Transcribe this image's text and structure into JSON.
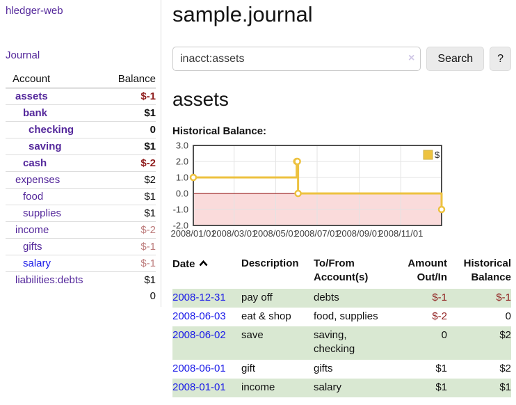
{
  "colors": {
    "link_purple": "#54289B",
    "link_blue": "#1a1ae8",
    "negative_strong": "#8f1d1d",
    "negative_faded": "#bd7c7c",
    "row_stripe_green": "#d9e8d2",
    "chart_gold": "#EDC240",
    "chart_negative_region": "#fadbdb",
    "chart_zero_line": "#8b0000"
  },
  "sidebar": {
    "brand": "hledger-web",
    "journal_link": "Journal",
    "accounts": {
      "header_account": "Account",
      "header_balance": "Balance",
      "rows": [
        {
          "name": "assets",
          "depth": 1,
          "bold": true,
          "balance": "$-1",
          "neg": "strong",
          "link": "purple"
        },
        {
          "name": "bank",
          "depth": 2,
          "bold": true,
          "balance": "$1",
          "neg": "none",
          "link": "purple"
        },
        {
          "name": "checking",
          "depth": 3,
          "bold": true,
          "balance": "0",
          "neg": "none",
          "link": "purple"
        },
        {
          "name": "saving",
          "depth": 3,
          "bold": true,
          "balance": "$1",
          "neg": "none",
          "link": "purple"
        },
        {
          "name": "cash",
          "depth": 2,
          "bold": true,
          "balance": "$-2",
          "neg": "strong",
          "link": "purple"
        },
        {
          "name": "expenses",
          "depth": 1,
          "bold": false,
          "balance": "$2",
          "neg": "none",
          "link": "purple"
        },
        {
          "name": "food",
          "depth": 2,
          "bold": false,
          "balance": "$1",
          "neg": "none",
          "link": "purple"
        },
        {
          "name": "supplies",
          "depth": 2,
          "bold": false,
          "balance": "$1",
          "neg": "none",
          "link": "purple"
        },
        {
          "name": "income",
          "depth": 1,
          "bold": false,
          "balance": "$-2",
          "neg": "faded",
          "link": "purple"
        },
        {
          "name": "gifts",
          "depth": 2,
          "bold": false,
          "balance": "$-1",
          "neg": "faded",
          "link": "purple"
        },
        {
          "name": "salary",
          "depth": 2,
          "bold": false,
          "balance": "$-1",
          "neg": "faded",
          "link": "blue"
        },
        {
          "name": "liabilities:debts",
          "depth": 1,
          "bold": false,
          "balance": "$1",
          "neg": "none",
          "link": "purple"
        }
      ],
      "total": "0"
    }
  },
  "main": {
    "title": "sample.journal",
    "search": {
      "value": "inacct:assets",
      "clear_icon": "×",
      "search_button": "Search",
      "help_button": "?"
    },
    "account_heading": "assets",
    "section_label": "Historical Balance:"
  },
  "chart_data": {
    "type": "line",
    "style": "step-after",
    "title": "Historical Balance",
    "legend": [
      {
        "label": "$",
        "color": "#EDC240"
      }
    ],
    "legend_position": "top-right",
    "ylim": [
      -2.0,
      3.0
    ],
    "yticks": [
      "3.0",
      "2.0",
      "1.0",
      "0.0",
      "-1.0",
      "-2.0"
    ],
    "xlim_days": [
      0,
      365
    ],
    "xticks": [
      {
        "day": 0,
        "label": "2008/01/01"
      },
      {
        "day": 60,
        "label": "2008/03/01"
      },
      {
        "day": 121,
        "label": "2008/05/01"
      },
      {
        "day": 182,
        "label": "2008/07/01"
      },
      {
        "day": 244,
        "label": "2008/09/01"
      },
      {
        "day": 305,
        "label": "2008/11/01"
      }
    ],
    "grid": true,
    "negative_region_shaded": true,
    "series": [
      {
        "name": "$",
        "points": [
          {
            "date": "2008-01-01",
            "day": 0,
            "value": 1
          },
          {
            "date": "2008-06-01",
            "day": 152,
            "value": 2
          },
          {
            "date": "2008-06-02",
            "day": 153,
            "value": 2
          },
          {
            "date": "2008-06-03",
            "day": 154,
            "value": 0
          },
          {
            "date": "2008-12-31",
            "day": 365,
            "value": -1
          }
        ]
      }
    ]
  },
  "register": {
    "headers": {
      "date": "Date",
      "description": "Description",
      "accounts": "To/From Account(s)",
      "amount": "Amount Out/In",
      "balance": "Historical Balance"
    },
    "rows": [
      {
        "date": "2008-12-31",
        "description": "pay off",
        "accounts": "debts",
        "amount": "$-1",
        "amount_neg": true,
        "balance": "$-1",
        "balance_neg": true,
        "green": true
      },
      {
        "date": "2008-06-03",
        "description": "eat & shop",
        "accounts": "food, supplies",
        "amount": "$-2",
        "amount_neg": true,
        "balance": "0",
        "balance_neg": false,
        "green": false
      },
      {
        "date": "2008-06-02",
        "description": "save",
        "accounts": "saving, checking",
        "amount": "0",
        "amount_neg": false,
        "balance": "$2",
        "balance_neg": false,
        "green": true
      },
      {
        "date": "2008-06-01",
        "description": "gift",
        "accounts": "gifts",
        "amount": "$1",
        "amount_neg": false,
        "balance": "$2",
        "balance_neg": false,
        "green": false
      },
      {
        "date": "2008-01-01",
        "description": "income",
        "accounts": "salary",
        "amount": "$1",
        "amount_neg": false,
        "balance": "$1",
        "balance_neg": false,
        "green": true
      }
    ]
  }
}
